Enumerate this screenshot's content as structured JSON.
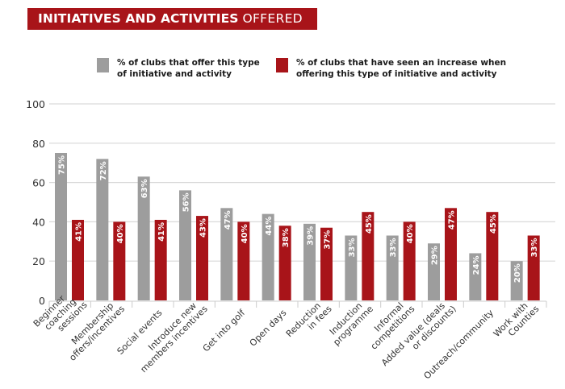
{
  "header": {
    "title_bold": "INITIATIVES AND ACTIVITIES",
    "title_light": "OFFERED"
  },
  "colors": {
    "banner": "#a81419",
    "series_offer": "#9d9d9d",
    "series_increase": "#a81419",
    "grid": "#d9d9d9",
    "axis": "#cccccc",
    "text": "#333333"
  },
  "legend": [
    {
      "line1": "% of clubs that offer this type",
      "line2": "of initiative and activity"
    },
    {
      "line1": "% of clubs that have seen an increase when",
      "line2": "offering this type of initiative and activity"
    }
  ],
  "chart_data": {
    "type": "bar",
    "title": "INITIATIVES AND ACTIVITIES OFFERED",
    "xlabel": "",
    "ylabel": "",
    "ylim": [
      0,
      100
    ],
    "yticks": [
      0,
      20,
      40,
      60,
      80,
      100
    ],
    "grid": true,
    "legend_position": "top",
    "categories": [
      [
        "Beginner",
        "coaching",
        "sessions"
      ],
      [
        "Membership",
        "offers/incentives"
      ],
      [
        "Social events"
      ],
      [
        "Introduce new",
        "members incentives"
      ],
      [
        "Get into golf"
      ],
      [
        "Open days"
      ],
      [
        "Reduction",
        "in fees"
      ],
      [
        "Induction",
        "programme"
      ],
      [
        "Informal",
        "competitions"
      ],
      [
        "Added value (deals",
        "or discounts)"
      ],
      [
        "Outreach/community"
      ],
      [
        "Work with",
        "Counties"
      ]
    ],
    "series": [
      {
        "name": "% of clubs that offer this type of initiative and activity",
        "values": [
          75,
          72,
          63,
          56,
          47,
          44,
          39,
          33,
          33,
          29,
          24,
          20
        ],
        "labels": [
          "75%",
          "72%",
          "63%",
          "56%",
          "47%",
          "44%",
          "39%",
          "33%",
          "33%",
          "29%",
          "24%",
          "20%"
        ]
      },
      {
        "name": "% of clubs that have seen an increase when offering this type of initiative and activity",
        "values": [
          41,
          40,
          41,
          43,
          40,
          38,
          37,
          45,
          40,
          47,
          45,
          33
        ],
        "labels": [
          "41%",
          "40%",
          "41%",
          "43%",
          "40%",
          "38%",
          "37%",
          "45%",
          "40%",
          "47%",
          "45%",
          "33%"
        ]
      }
    ]
  }
}
